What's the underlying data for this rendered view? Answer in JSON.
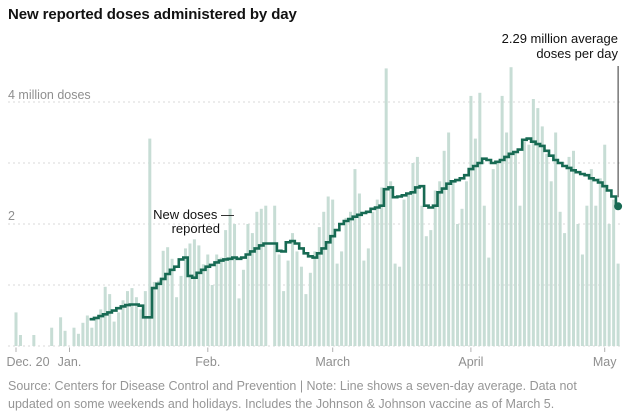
{
  "figure": {
    "title": "New reported doses administered by day"
  },
  "annotations": {
    "average": {
      "line1": "2.29 million average",
      "line2": "doses per day"
    },
    "new_doses": {
      "line1": "New doses —",
      "line2": "reported"
    }
  },
  "footer": {
    "line1": "Source: Centers for Disease Control and Prevention | Note: Line shows a seven-day average. Data not",
    "line2": "updated on some weekends and holidays. Includes the Johnson & Johnson vaccine as of March 5."
  },
  "chart_data": {
    "type": "bar",
    "description": "Daily reported vaccine doses administered (bars) with a seven-day average step line",
    "x_unit": "days since Dec. 20",
    "y_unit": "million doses",
    "ylim": [
      0,
      4.8
    ],
    "y_gridlines": [
      1,
      2,
      3,
      4
    ],
    "y_tick_labels": [
      {
        "value": 4,
        "label": "4 million doses"
      },
      {
        "value": 2,
        "label": "2"
      }
    ],
    "months": [
      {
        "label": "Dec. 20",
        "day": 0
      },
      {
        "label": "Jan.",
        "day": 12
      },
      {
        "label": "Feb.",
        "day": 43
      },
      {
        "label": "March",
        "day": 71
      },
      {
        "label": "April",
        "day": 102
      },
      {
        "label": "May",
        "day": 132
      }
    ],
    "bars": [
      0.55,
      0.18,
      0,
      0,
      0.18,
      0,
      0,
      0,
      0.3,
      0,
      0.47,
      0.25,
      0,
      0.3,
      0.2,
      0.38,
      0.5,
      0.3,
      0.45,
      0.6,
      0.97,
      0.85,
      0.4,
      0.55,
      0.75,
      0.9,
      0.95,
      0.8,
      0.6,
      0.9,
      3.4,
      1.05,
      1.07,
      1.56,
      1.62,
      1.43,
      0.8,
      1.15,
      1.6,
      1.68,
      1.75,
      1.65,
      1.34,
      1.5,
      1.0,
      1.5,
      1.45,
      1.9,
      2.25,
      2.0,
      0.78,
      1.25,
      2.0,
      1.85,
      2.2,
      2.25,
      2.3,
      0,
      2.3,
      1.5,
      0.9,
      1.4,
      1.85,
      1.55,
      1.3,
      0.85,
      1.2,
      1.55,
      1.95,
      2.2,
      2.45,
      2.4,
      1.35,
      1.55,
      2.1,
      2.2,
      2.9,
      2.5,
      1.4,
      1.6,
      2.2,
      2.4,
      2.6,
      4.55,
      2.7,
      1.35,
      1.3,
      2.4,
      2.5,
      3.0,
      3.1,
      2.3,
      1.8,
      1.9,
      2.55,
      2.7,
      3.2,
      3.5,
      2.7,
      2.0,
      2.25,
      2.7,
      4.1,
      3.4,
      4.15,
      2.3,
      1.45,
      2.9,
      3.0,
      4.1,
      3.5,
      4.57,
      3.2,
      2.3,
      3.35,
      3.3,
      4.05,
      3.9,
      3.6,
      3.15,
      2.7,
      3.5,
      2.2,
      1.85,
      3.1,
      3.2,
      2.0,
      1.5,
      2.3,
      2.9,
      2.3,
      2.75,
      3.3,
      2.0,
      2.4,
      1.35
    ],
    "line": {
      "name": "seven-day average",
      "start_day": 17,
      "end_value": 2.29,
      "values": [
        0.44,
        0.46,
        0.49,
        0.52,
        0.55,
        0.58,
        0.62,
        0.65,
        0.67,
        0.68,
        0.68,
        0.66,
        0.47,
        0.47,
        0.95,
        1.02,
        1.1,
        1.18,
        1.25,
        1.3,
        1.42,
        1.45,
        1.15,
        1.12,
        1.2,
        1.25,
        1.3,
        1.33,
        1.37,
        1.4,
        1.42,
        1.43,
        1.45,
        1.43,
        1.45,
        1.5,
        1.55,
        1.6,
        1.65,
        1.68,
        1.68,
        1.68,
        1.56,
        1.55,
        1.7,
        1.72,
        1.68,
        1.6,
        1.52,
        1.47,
        1.45,
        1.52,
        1.6,
        1.7,
        1.8,
        1.9,
        2.0,
        2.05,
        2.08,
        2.12,
        2.15,
        2.18,
        2.2,
        2.25,
        2.27,
        2.3,
        2.57,
        2.6,
        2.44,
        2.45,
        2.47,
        2.5,
        2.52,
        2.6,
        2.62,
        2.3,
        2.27,
        2.3,
        2.52,
        2.58,
        2.66,
        2.7,
        2.72,
        2.75,
        2.8,
        2.9,
        2.95,
        3.0,
        3.07,
        3.05,
        3.0,
        3.02,
        3.05,
        3.1,
        3.15,
        3.18,
        3.22,
        3.38,
        3.4,
        3.35,
        3.31,
        3.28,
        3.2,
        3.12,
        3.05,
        3.0,
        2.95,
        2.92,
        2.88,
        2.85,
        2.82,
        2.8,
        2.75,
        2.72,
        2.68,
        2.62,
        2.55,
        2.45,
        2.29
      ]
    },
    "colors": {
      "bar": "#c7ddd5",
      "line": "#176a53",
      "grid": "#d9d9d9",
      "tick": "#b0b0b0",
      "axis_text": "#8f8f8f",
      "annotation_text": "#121212",
      "pointer": "#333333",
      "title_text": "#121212",
      "footer_text": "#969696"
    }
  }
}
